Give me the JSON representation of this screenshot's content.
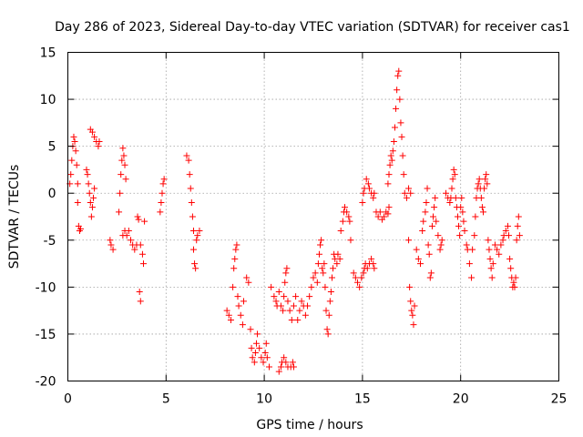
{
  "chart_data": {
    "type": "scatter",
    "title": "Day 286 of 2023, Sidereal Day-to-day VTEC variation (SDTVAR) for receiver cas1",
    "xlabel": "GPS time / hours",
    "ylabel": "SDTVAR / TECUs",
    "xlim": [
      0,
      25
    ],
    "ylim": [
      -20,
      15
    ],
    "xticks": [
      "0",
      "5",
      "10",
      "15",
      "20",
      "25"
    ],
    "yticks": [
      "15",
      "10",
      "5",
      "0",
      "-5",
      "-10",
      "-15",
      "-20"
    ],
    "grid": true,
    "marker": "plus",
    "marker_color": "#ff0000",
    "series": [
      {
        "name": "cas1",
        "points": [
          [
            0.1,
            1.0
          ],
          [
            0.15,
            2.0
          ],
          [
            0.2,
            3.5
          ],
          [
            0.25,
            5.0
          ],
          [
            0.3,
            6.0
          ],
          [
            0.35,
            5.5
          ],
          [
            0.4,
            4.5
          ],
          [
            0.45,
            3.0
          ],
          [
            0.5,
            1.0
          ],
          [
            0.5,
            -1.0
          ],
          [
            0.55,
            -3.5
          ],
          [
            0.6,
            -4.0
          ],
          [
            0.65,
            -3.8
          ],
          [
            0.95,
            2.5
          ],
          [
            1.0,
            2.0
          ],
          [
            1.05,
            1.0
          ],
          [
            1.1,
            0.0
          ],
          [
            1.15,
            -1.0
          ],
          [
            1.2,
            -2.5
          ],
          [
            1.25,
            -1.5
          ],
          [
            1.3,
            -0.5
          ],
          [
            1.35,
            0.5
          ],
          [
            1.15,
            6.8
          ],
          [
            1.25,
            6.5
          ],
          [
            1.35,
            6.0
          ],
          [
            1.45,
            5.5
          ],
          [
            1.55,
            5.0
          ],
          [
            1.6,
            5.5
          ],
          [
            2.15,
            -5.0
          ],
          [
            2.2,
            -5.5
          ],
          [
            2.3,
            -6.0
          ],
          [
            2.6,
            -2.0
          ],
          [
            2.65,
            0.0
          ],
          [
            2.7,
            2.0
          ],
          [
            2.75,
            3.5
          ],
          [
            2.8,
            4.8
          ],
          [
            2.85,
            4.0
          ],
          [
            2.9,
            3.0
          ],
          [
            2.95,
            1.5
          ],
          [
            2.8,
            -4.5
          ],
          [
            2.9,
            -4.0
          ],
          [
            3.0,
            -4.5
          ],
          [
            3.1,
            -4.0
          ],
          [
            3.2,
            -5.0
          ],
          [
            3.3,
            -5.5
          ],
          [
            3.4,
            -6.0
          ],
          [
            3.5,
            -5.5
          ],
          [
            3.55,
            -2.5
          ],
          [
            3.6,
            -2.8
          ],
          [
            3.65,
            -10.5
          ],
          [
            3.7,
            -11.5
          ],
          [
            3.7,
            -5.5
          ],
          [
            3.8,
            -6.5
          ],
          [
            3.85,
            -7.5
          ],
          [
            3.9,
            -3.0
          ],
          [
            4.7,
            -2.0
          ],
          [
            4.75,
            -1.0
          ],
          [
            4.8,
            0.0
          ],
          [
            4.85,
            1.0
          ],
          [
            4.9,
            1.5
          ],
          [
            6.05,
            4.0
          ],
          [
            6.15,
            3.5
          ],
          [
            6.2,
            2.0
          ],
          [
            6.25,
            0.5
          ],
          [
            6.3,
            -1.0
          ],
          [
            6.35,
            -2.5
          ],
          [
            6.4,
            -4.0
          ],
          [
            6.4,
            -6.0
          ],
          [
            6.45,
            -7.5
          ],
          [
            6.5,
            -8.0
          ],
          [
            6.55,
            -5.0
          ],
          [
            6.6,
            -4.5
          ],
          [
            6.7,
            -4.0
          ],
          [
            8.1,
            -12.5
          ],
          [
            8.2,
            -13.0
          ],
          [
            8.3,
            -13.5
          ],
          [
            8.4,
            -10.0
          ],
          [
            8.45,
            -8.0
          ],
          [
            8.5,
            -7.0
          ],
          [
            8.55,
            -6.0
          ],
          [
            8.6,
            -5.5
          ],
          [
            8.65,
            -11.0
          ],
          [
            8.7,
            -12.0
          ],
          [
            8.8,
            -13.0
          ],
          [
            8.9,
            -14.0
          ],
          [
            8.95,
            -11.5
          ],
          [
            9.1,
            -9.0
          ],
          [
            9.2,
            -9.5
          ],
          [
            9.3,
            -14.5
          ],
          [
            9.35,
            -16.5
          ],
          [
            9.4,
            -17.5
          ],
          [
            9.5,
            -18.0
          ],
          [
            9.55,
            -17.0
          ],
          [
            9.6,
            -16.0
          ],
          [
            9.65,
            -15.0
          ],
          [
            9.75,
            -16.5
          ],
          [
            9.85,
            -17.5
          ],
          [
            9.95,
            -18.0
          ],
          [
            10.05,
            -17.0
          ],
          [
            10.1,
            -16.0
          ],
          [
            10.15,
            -17.5
          ],
          [
            10.25,
            -18.5
          ],
          [
            10.35,
            -10.0
          ],
          [
            10.5,
            -11.0
          ],
          [
            10.6,
            -11.5
          ],
          [
            10.65,
            -12.0
          ],
          [
            10.75,
            -10.5
          ],
          [
            10.85,
            -12.0
          ],
          [
            10.95,
            -12.5
          ],
          [
            11.0,
            -11.0
          ],
          [
            11.05,
            -9.5
          ],
          [
            11.1,
            -8.5
          ],
          [
            11.15,
            -8.0
          ],
          [
            11.2,
            -11.5
          ],
          [
            11.3,
            -12.5
          ],
          [
            11.4,
            -13.5
          ],
          [
            11.5,
            -12.0
          ],
          [
            11.6,
            -11.0
          ],
          [
            10.75,
            -19.0
          ],
          [
            10.85,
            -18.5
          ],
          [
            10.9,
            -18.0
          ],
          [
            11.0,
            -17.5
          ],
          [
            11.1,
            -18.0
          ],
          [
            11.2,
            -18.5
          ],
          [
            11.35,
            -18.5
          ],
          [
            11.45,
            -18.0
          ],
          [
            11.5,
            -18.5
          ],
          [
            11.7,
            -13.5
          ],
          [
            11.8,
            -12.5
          ],
          [
            11.9,
            -11.5
          ],
          [
            12.0,
            -12.0
          ],
          [
            12.1,
            -13.0
          ],
          [
            12.2,
            -12.0
          ],
          [
            12.3,
            -11.0
          ],
          [
            12.4,
            -10.0
          ],
          [
            12.5,
            -9.0
          ],
          [
            12.6,
            -8.5
          ],
          [
            12.7,
            -9.5
          ],
          [
            12.75,
            -7.5
          ],
          [
            12.8,
            -6.5
          ],
          [
            12.85,
            -5.5
          ],
          [
            12.9,
            -5.0
          ],
          [
            12.95,
            -8.0
          ],
          [
            13.0,
            -8.5
          ],
          [
            13.05,
            -7.5
          ],
          [
            13.1,
            -10.0
          ],
          [
            13.15,
            -12.5
          ],
          [
            13.2,
            -14.5
          ],
          [
            13.25,
            -15.0
          ],
          [
            13.3,
            -13.0
          ],
          [
            13.35,
            -11.5
          ],
          [
            13.4,
            -10.5
          ],
          [
            13.45,
            -9.0
          ],
          [
            13.5,
            -8.0
          ],
          [
            13.55,
            -6.5
          ],
          [
            13.6,
            -7.0
          ],
          [
            13.7,
            -7.5
          ],
          [
            13.75,
            -6.5
          ],
          [
            13.85,
            -7.0
          ],
          [
            13.9,
            -4.0
          ],
          [
            14.0,
            -3.0
          ],
          [
            14.05,
            -2.0
          ],
          [
            14.1,
            -1.5
          ],
          [
            14.2,
            -2.0
          ],
          [
            14.3,
            -2.5
          ],
          [
            14.35,
            -3.0
          ],
          [
            14.4,
            -5.0
          ],
          [
            14.55,
            -8.5
          ],
          [
            14.65,
            -9.0
          ],
          [
            14.75,
            -9.5
          ],
          [
            14.85,
            -10.0
          ],
          [
            14.95,
            -9.0
          ],
          [
            15.05,
            -8.5
          ],
          [
            15.1,
            -8.0
          ],
          [
            15.15,
            -7.5
          ],
          [
            15.25,
            -8.0
          ],
          [
            15.35,
            -7.5
          ],
          [
            15.45,
            -7.0
          ],
          [
            15.55,
            -7.5
          ],
          [
            15.6,
            -8.0
          ],
          [
            15.0,
            -1.0
          ],
          [
            15.05,
            0.0
          ],
          [
            15.1,
            0.5
          ],
          [
            15.2,
            1.5
          ],
          [
            15.3,
            1.0
          ],
          [
            15.35,
            0.5
          ],
          [
            15.45,
            0.0
          ],
          [
            15.55,
            -0.5
          ],
          [
            15.6,
            0.0
          ],
          [
            15.7,
            -2.0
          ],
          [
            15.8,
            -2.5
          ],
          [
            15.9,
            -2.0
          ],
          [
            16.0,
            -2.8
          ],
          [
            16.1,
            -2.5
          ],
          [
            16.2,
            -2.0
          ],
          [
            16.3,
            -2.2
          ],
          [
            16.35,
            -1.5
          ],
          [
            16.3,
            1.0
          ],
          [
            16.35,
            2.0
          ],
          [
            16.4,
            3.0
          ],
          [
            16.45,
            4.0
          ],
          [
            16.5,
            3.5
          ],
          [
            16.55,
            4.5
          ],
          [
            16.6,
            5.5
          ],
          [
            16.65,
            7.0
          ],
          [
            16.7,
            9.0
          ],
          [
            16.75,
            11.0
          ],
          [
            16.8,
            12.5
          ],
          [
            16.85,
            13.0
          ],
          [
            16.9,
            10.0
          ],
          [
            16.95,
            7.5
          ],
          [
            17.0,
            6.0
          ],
          [
            17.05,
            4.0
          ],
          [
            17.1,
            2.0
          ],
          [
            17.15,
            0.0
          ],
          [
            17.25,
            -0.5
          ],
          [
            17.35,
            0.5
          ],
          [
            17.45,
            0.0
          ],
          [
            17.35,
            -5.0
          ],
          [
            17.4,
            -10.0
          ],
          [
            17.45,
            -11.5
          ],
          [
            17.5,
            -12.5
          ],
          [
            17.55,
            -13.0
          ],
          [
            17.6,
            -14.0
          ],
          [
            17.65,
            -12.0
          ],
          [
            17.75,
            -6.0
          ],
          [
            17.85,
            -7.0
          ],
          [
            17.95,
            -7.5
          ],
          [
            18.05,
            -4.0
          ],
          [
            18.1,
            -3.0
          ],
          [
            18.2,
            -2.0
          ],
          [
            18.25,
            -1.0
          ],
          [
            18.3,
            0.5
          ],
          [
            18.35,
            -5.5
          ],
          [
            18.4,
            -6.5
          ],
          [
            18.45,
            -9.0
          ],
          [
            18.5,
            -8.5
          ],
          [
            18.55,
            -3.5
          ],
          [
            18.6,
            -2.5
          ],
          [
            18.65,
            -1.5
          ],
          [
            18.7,
            -0.5
          ],
          [
            18.75,
            -3.0
          ],
          [
            18.85,
            -4.5
          ],
          [
            18.95,
            -6.0
          ],
          [
            19.0,
            -5.5
          ],
          [
            19.05,
            -5.0
          ],
          [
            19.25,
            0.0
          ],
          [
            19.35,
            -0.5
          ],
          [
            19.45,
            -1.0
          ],
          [
            19.5,
            -0.5
          ],
          [
            19.55,
            0.5
          ],
          [
            19.6,
            1.5
          ],
          [
            19.65,
            2.5
          ],
          [
            19.7,
            2.0
          ],
          [
            19.75,
            -0.5
          ],
          [
            19.8,
            -1.5
          ],
          [
            19.85,
            -2.5
          ],
          [
            19.9,
            -3.5
          ],
          [
            19.95,
            -4.5
          ],
          [
            20.0,
            -1.5
          ],
          [
            20.05,
            -0.5
          ],
          [
            20.1,
            -2.0
          ],
          [
            20.15,
            -3.0
          ],
          [
            20.2,
            -4.0
          ],
          [
            20.3,
            -5.5
          ],
          [
            20.35,
            -6.0
          ],
          [
            20.45,
            -7.5
          ],
          [
            20.55,
            -9.0
          ],
          [
            20.6,
            -6.0
          ],
          [
            20.7,
            -4.5
          ],
          [
            20.75,
            -2.5
          ],
          [
            20.8,
            -0.5
          ],
          [
            20.85,
            0.5
          ],
          [
            20.9,
            1.0
          ],
          [
            20.95,
            1.5
          ],
          [
            21.0,
            0.5
          ],
          [
            21.05,
            -0.5
          ],
          [
            21.1,
            -1.5
          ],
          [
            21.15,
            -2.0
          ],
          [
            21.2,
            0.5
          ],
          [
            21.25,
            1.5
          ],
          [
            21.3,
            2.0
          ],
          [
            21.35,
            1.0
          ],
          [
            21.4,
            -5.0
          ],
          [
            21.45,
            -6.0
          ],
          [
            21.5,
            -7.0
          ],
          [
            21.55,
            -8.0
          ],
          [
            21.6,
            -9.0
          ],
          [
            21.65,
            -7.5
          ],
          [
            21.75,
            -5.5
          ],
          [
            21.85,
            -6.0
          ],
          [
            21.95,
            -6.5
          ],
          [
            22.05,
            -5.5
          ],
          [
            22.15,
            -5.0
          ],
          [
            22.2,
            -4.5
          ],
          [
            22.3,
            -4.0
          ],
          [
            22.4,
            -3.5
          ],
          [
            22.45,
            -4.5
          ],
          [
            22.5,
            -7.0
          ],
          [
            22.55,
            -8.0
          ],
          [
            22.6,
            -9.0
          ],
          [
            22.65,
            -10.0
          ],
          [
            22.7,
            -9.5
          ],
          [
            22.75,
            -10.0
          ],
          [
            22.8,
            -9.0
          ],
          [
            22.85,
            -5.0
          ],
          [
            22.9,
            -3.5
          ],
          [
            22.95,
            -2.5
          ],
          [
            23.0,
            -4.5
          ]
        ]
      }
    ]
  }
}
